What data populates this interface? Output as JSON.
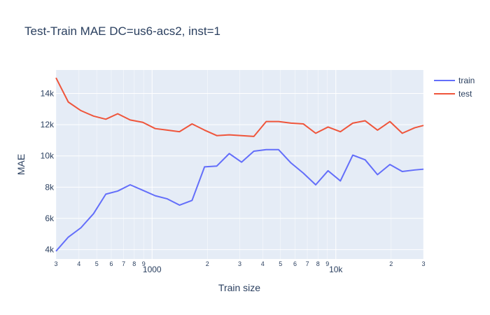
{
  "chart_data": {
    "type": "line",
    "title": "Test-Train MAE  DC=us6-acs2, inst=1",
    "xlabel": "Train size",
    "ylabel": "MAE",
    "x_scale": "log",
    "xlim": [
      300,
      30000
    ],
    "ylim": [
      3400,
      15500
    ],
    "grid": true,
    "legend_position": "top-right",
    "x": [
      300,
      350,
      410,
      480,
      560,
      650,
      760,
      890,
      1040,
      1210,
      1410,
      1650,
      1930,
      2250,
      2630,
      3070,
      3580,
      4180,
      4880,
      5700,
      6650,
      7770,
      9070,
      10590,
      12370,
      14440,
      16860,
      19690,
      22990,
      26850,
      30000
    ],
    "series": [
      {
        "name": "train",
        "color": "#636efa",
        "values": [
          3900,
          4800,
          5400,
          6300,
          7550,
          7750,
          8150,
          7800,
          7450,
          7250,
          6850,
          7150,
          9300,
          9350,
          10150,
          9600,
          10300,
          10400,
          10400,
          9550,
          8900,
          8150,
          9050,
          8400,
          10050,
          9750,
          8800,
          9450,
          9000,
          9100,
          9150
        ]
      },
      {
        "name": "test",
        "color": "#ef553b",
        "values": [
          15000,
          13450,
          12900,
          12550,
          12350,
          12700,
          12300,
          12150,
          11750,
          11650,
          11550,
          12050,
          11650,
          11300,
          11350,
          11300,
          11250,
          12200,
          12200,
          12100,
          12050,
          11450,
          11850,
          11550,
          12100,
          12250,
          11650,
          12200,
          11450,
          11800,
          11950
        ]
      }
    ],
    "y_ticks": [
      {
        "value": 4000,
        "label": "4k"
      },
      {
        "value": 6000,
        "label": "6k"
      },
      {
        "value": 8000,
        "label": "8k"
      },
      {
        "value": 10000,
        "label": "10k"
      },
      {
        "value": 12000,
        "label": "12k"
      },
      {
        "value": 14000,
        "label": "14k"
      }
    ],
    "x_ticks_major": [
      {
        "value": 1000,
        "label": "1000"
      },
      {
        "value": 10000,
        "label": "10k"
      }
    ],
    "x_ticks_minor": [
      {
        "value": 300,
        "label": "3"
      },
      {
        "value": 400,
        "label": "4"
      },
      {
        "value": 500,
        "label": "5"
      },
      {
        "value": 600,
        "label": "6"
      },
      {
        "value": 700,
        "label": "7"
      },
      {
        "value": 800,
        "label": "8"
      },
      {
        "value": 900,
        "label": "9"
      },
      {
        "value": 2000,
        "label": "2"
      },
      {
        "value": 3000,
        "label": "3"
      },
      {
        "value": 4000,
        "label": "4"
      },
      {
        "value": 5000,
        "label": "5"
      },
      {
        "value": 6000,
        "label": "6"
      },
      {
        "value": 7000,
        "label": "7"
      },
      {
        "value": 8000,
        "label": "8"
      },
      {
        "value": 9000,
        "label": "9"
      },
      {
        "value": 20000,
        "label": "2"
      },
      {
        "value": 30000,
        "label": "3"
      }
    ]
  }
}
